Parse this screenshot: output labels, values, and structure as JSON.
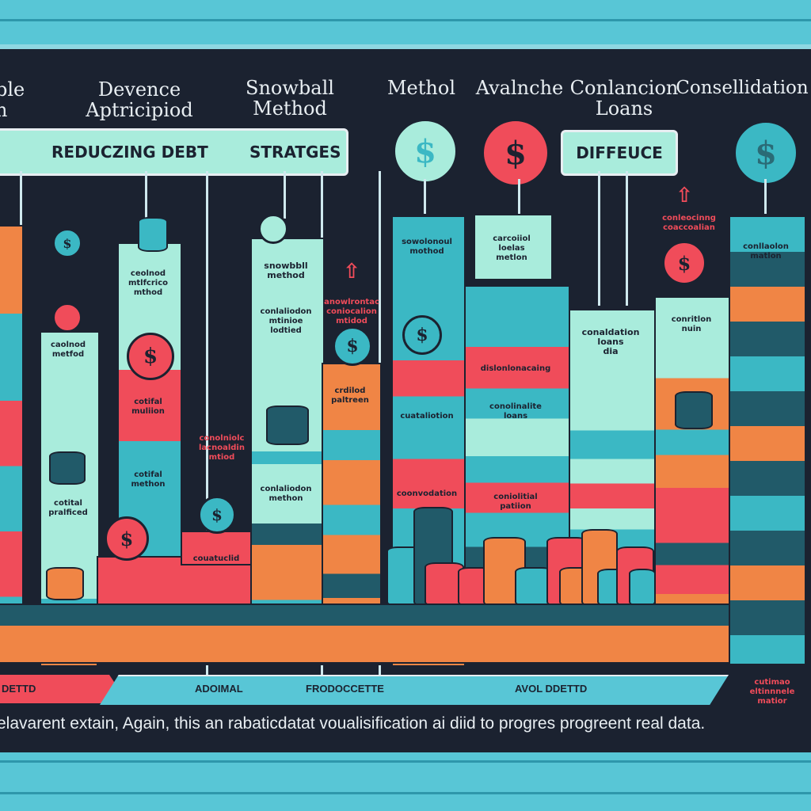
{
  "headers": [
    {
      "text": "ble\nn"
    },
    {
      "text": "Devence\nAptricipiod"
    },
    {
      "text": "Snowball\nMethod"
    },
    {
      "text": "Methol"
    },
    {
      "text": "Avalnche"
    },
    {
      "text": "Conlancion\nLoans"
    },
    {
      "text": "Consellidation"
    }
  ],
  "banners": {
    "left_a": "REDUCZING DEBT",
    "left_b": "STRATGES",
    "right": "DIFFEUCE"
  },
  "coin_symbol": "$",
  "timeline": {
    "left": "DETTD",
    "mid_a": "ADOIMAL",
    "mid_b": "FRODOCCETTE",
    "mid_c": "AVOL DDETTD"
  },
  "caption": "elavarent extain, Again, this an rabaticdatat voualisification ai diid to progres progreent real data.",
  "colors": {
    "teal": "#3bb8c4",
    "mint": "#a9ecdc",
    "coral": "#f04c5a",
    "orange": "#f08545",
    "navy": "#1b2230",
    "dark_teal": "#215a69",
    "frame": "#58c6d6"
  }
}
